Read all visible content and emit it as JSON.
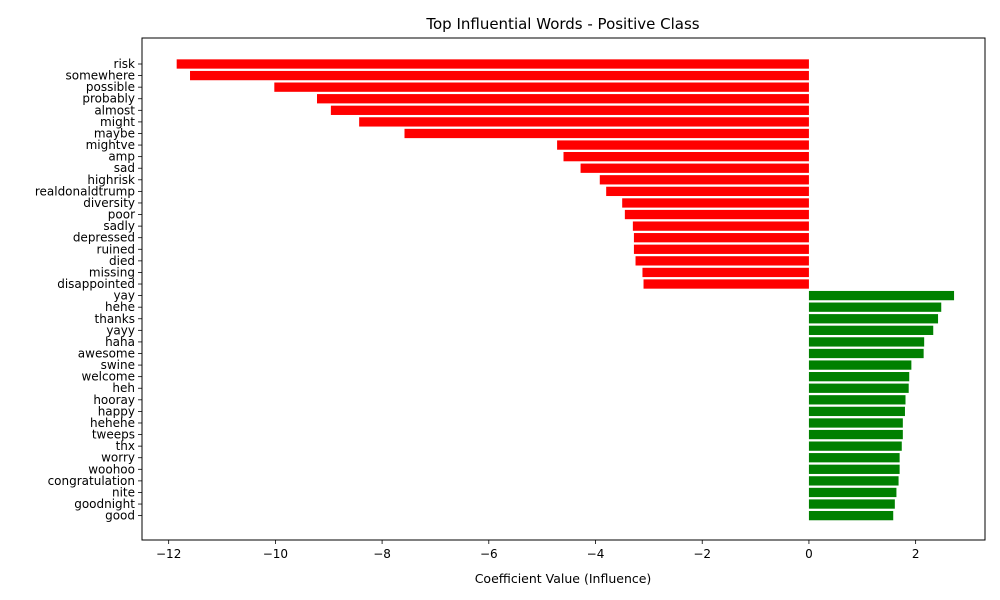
{
  "chart_data": {
    "type": "bar",
    "orientation": "horizontal",
    "title": "Top Influential Words - Positive Class",
    "xlabel": "Coefficient Value (Influence)",
    "ylabel": "",
    "xlim": [
      -12.5,
      3.3
    ],
    "xticks": [
      -12,
      -10,
      -8,
      -6,
      -4,
      -2,
      0,
      2
    ],
    "xtick_labels": [
      "−12",
      "−10",
      "−8",
      "−6",
      "−4",
      "−2",
      "0",
      "2"
    ],
    "grid": false,
    "categories": [
      "risk",
      "somewhere",
      "possible",
      "probably",
      "almost",
      "might",
      "maybe",
      "mightve",
      "amp",
      "sad",
      "highrisk",
      "realdonaldtrump",
      "diversity",
      "poor",
      "sadly",
      "depressed",
      "ruined",
      "died",
      "missing",
      "disappointed",
      "yay",
      "hehe",
      "thanks",
      "yayy",
      "haha",
      "awesome",
      "swine",
      "welcome",
      "heh",
      "hooray",
      "happy",
      "hehehe",
      "tweeps",
      "thx",
      "worry",
      "woohoo",
      "congratulation",
      "nite",
      "goodnight",
      "good"
    ],
    "values": [
      -11.85,
      -11.6,
      -10.02,
      -9.22,
      -8.96,
      -8.43,
      -7.58,
      -4.72,
      -4.6,
      -4.28,
      -3.92,
      -3.8,
      -3.5,
      -3.45,
      -3.3,
      -3.28,
      -3.28,
      -3.25,
      -3.12,
      -3.1,
      2.72,
      2.48,
      2.42,
      2.33,
      2.16,
      2.15,
      1.92,
      1.88,
      1.87,
      1.81,
      1.8,
      1.76,
      1.76,
      1.74,
      1.7,
      1.7,
      1.68,
      1.64,
      1.61,
      1.58
    ],
    "colors": {
      "negative": "#ff0000",
      "positive": "#008000"
    }
  }
}
